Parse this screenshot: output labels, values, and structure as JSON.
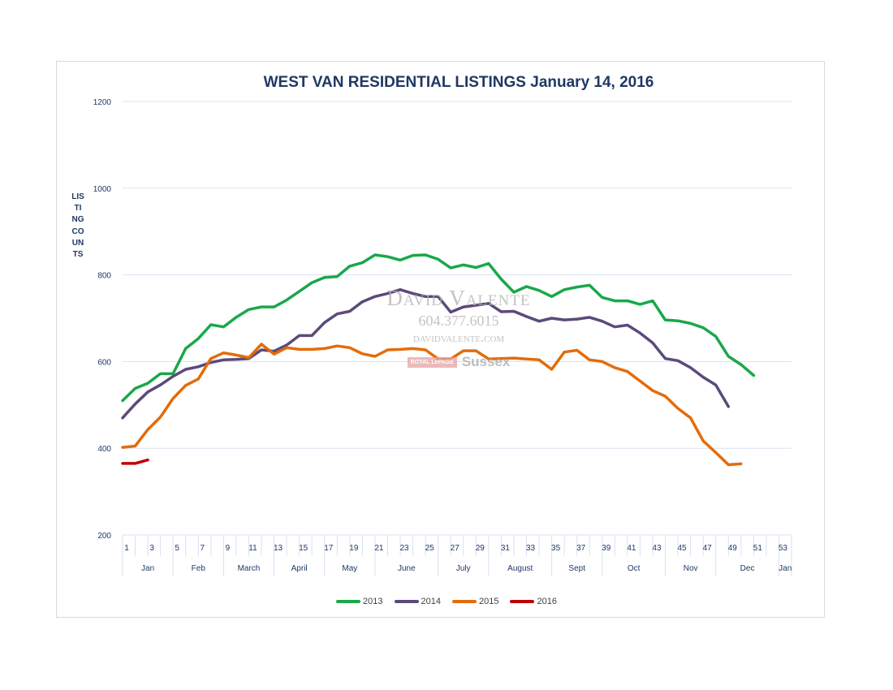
{
  "chart_data": {
    "type": "line",
    "title": "WEST VAN RESIDENTIAL LISTINGS January 14, 2016",
    "ylabel": "LISTING COUNTS",
    "ylim": [
      200,
      1200
    ],
    "yticks": [
      200,
      400,
      600,
      800,
      1000,
      1200
    ],
    "xlim": [
      1,
      54
    ],
    "xticks": [
      "1",
      "3",
      "5",
      "7",
      "9",
      "11",
      "13",
      "15",
      "17",
      "19",
      "21",
      "23",
      "25",
      "27",
      "29",
      "31",
      "33",
      "35",
      "37",
      "39",
      "41",
      "43",
      "45",
      "47",
      "49",
      "51",
      "53"
    ],
    "months": [
      {
        "label": "Jan",
        "start": 1,
        "end": 5
      },
      {
        "label": "Feb",
        "start": 5,
        "end": 9
      },
      {
        "label": "March",
        "start": 9,
        "end": 13
      },
      {
        "label": "April",
        "start": 13,
        "end": 17
      },
      {
        "label": "May",
        "start": 17,
        "end": 21
      },
      {
        "label": "June",
        "start": 21,
        "end": 26
      },
      {
        "label": "July",
        "start": 26,
        "end": 30
      },
      {
        "label": "August",
        "start": 30,
        "end": 35
      },
      {
        "label": "Sept",
        "start": 35,
        "end": 39
      },
      {
        "label": "Oct",
        "start": 39,
        "end": 44
      },
      {
        "label": "Nov",
        "start": 44,
        "end": 48
      },
      {
        "label": "Dec",
        "start": 48,
        "end": 53
      },
      {
        "label": "Jan",
        "start": 53,
        "end": 54
      }
    ],
    "grid": true,
    "legend": "bottom",
    "series": [
      {
        "name": "2013",
        "color": "#19a84a",
        "x_start": 1,
        "values": [
          510,
          538,
          550,
          572,
          572,
          630,
          653,
          685,
          680,
          702,
          720,
          726,
          726,
          742,
          762,
          782,
          794,
          796,
          820,
          828,
          846,
          842,
          834,
          845,
          846,
          836,
          816,
          823,
          817,
          826,
          790,
          760,
          773,
          764,
          750,
          766,
          772,
          776,
          748,
          740,
          740,
          732,
          740,
          696,
          694,
          688,
          678,
          658,
          612,
          593,
          568
        ]
      },
      {
        "name": "2014",
        "color": "#5c4a7b",
        "x_start": 1,
        "values": [
          470,
          502,
          530,
          546,
          566,
          582,
          588,
          598,
          604,
          605,
          607,
          627,
          624,
          638,
          660,
          660,
          690,
          710,
          716,
          738,
          750,
          757,
          766,
          757,
          750,
          750,
          714,
          726,
          730,
          734,
          715,
          716,
          704,
          693,
          700,
          696,
          698,
          702,
          693,
          680,
          684,
          666,
          643,
          607,
          602,
          586,
          564,
          546,
          496
        ]
      },
      {
        "name": "2015",
        "color": "#e36c0a",
        "x_start": 1,
        "values": [
          402,
          405,
          443,
          472,
          515,
          545,
          560,
          607,
          620,
          615,
          609,
          640,
          617,
          632,
          628,
          628,
          630,
          636,
          632,
          618,
          612,
          627,
          628,
          630,
          627,
          606,
          606,
          625,
          625,
          606,
          607,
          608,
          606,
          604,
          582,
          622,
          626,
          604,
          600,
          586,
          577,
          555,
          533,
          520,
          492,
          470,
          417,
          390,
          362,
          364
        ]
      },
      {
        "name": "2016",
        "color": "#c00000",
        "x_start": 1,
        "values": [
          365,
          365,
          373
        ]
      }
    ]
  },
  "watermark": {
    "name": "David Valente",
    "phone": "604.377.6015",
    "site": "davidvalente.com",
    "brand_small": "ROYAL LePAGE",
    "brand_large": "Sussex"
  }
}
